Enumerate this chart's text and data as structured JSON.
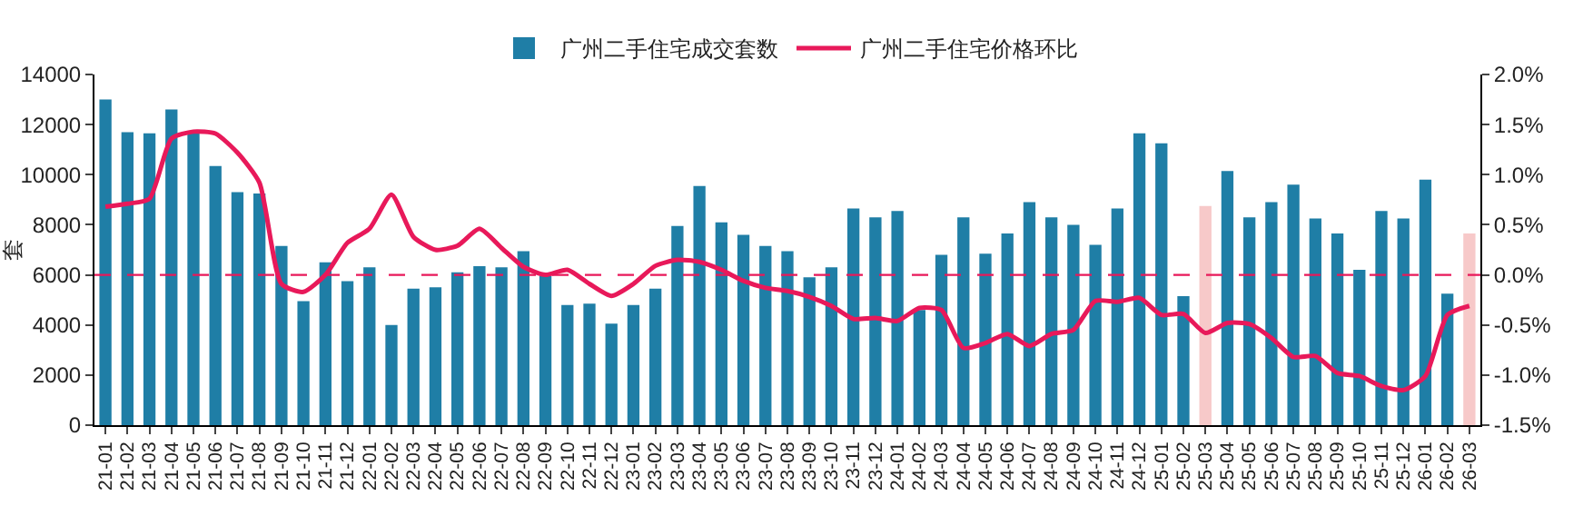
{
  "chart_data": {
    "type": "bar",
    "ylabel": "套",
    "categories": [
      "21-01",
      "21-02",
      "21-03",
      "21-04",
      "21-05",
      "21-06",
      "21-07",
      "21-08",
      "21-09",
      "21-10",
      "21-11",
      "21-12",
      "22-01",
      "22-02",
      "22-03",
      "22-04",
      "22-05",
      "22-06",
      "22-07",
      "22-08",
      "22-09",
      "22-10",
      "22-11",
      "22-12",
      "23-01",
      "23-02",
      "23-03",
      "23-04",
      "23-05",
      "23-06",
      "23-07",
      "23-08",
      "23-09",
      "23-10",
      "23-11",
      "23-12",
      "24-01",
      "24-02",
      "24-03",
      "24-04",
      "24-05",
      "24-06",
      "24-07",
      "24-08",
      "24-09",
      "24-10",
      "24-11",
      "24-12",
      "25-01",
      "25-02",
      "25-03",
      "25-04",
      "25-05",
      "25-06",
      "25-07",
      "25-08",
      "25-09",
      "25-10",
      "25-11",
      "25-12",
      "26-01",
      "26-02",
      "26-03"
    ],
    "series": [
      {
        "name": "广州二手住宅成交套数",
        "colors": [
          "#1f7ea6",
          "#1f7ea6",
          "#1f7ea6",
          "#1f7ea6",
          "#1f7ea6",
          "#1f7ea6",
          "#1f7ea6",
          "#1f7ea6",
          "#1f7ea6",
          "#1f7ea6",
          "#1f7ea6",
          "#1f7ea6",
          "#1f7ea6",
          "#1f7ea6",
          "#1f7ea6",
          "#1f7ea6",
          "#1f7ea6",
          "#1f7ea6",
          "#1f7ea6",
          "#1f7ea6",
          "#1f7ea6",
          "#1f7ea6",
          "#1f7ea6",
          "#1f7ea6",
          "#1f7ea6",
          "#1f7ea6",
          "#1f7ea6",
          "#1f7ea6",
          "#1f7ea6",
          "#1f7ea6",
          "#1f7ea6",
          "#1f7ea6",
          "#1f7ea6",
          "#1f7ea6",
          "#1f7ea6",
          "#1f7ea6",
          "#1f7ea6",
          "#1f7ea6",
          "#1f7ea6",
          "#1f7ea6",
          "#1f7ea6",
          "#1f7ea6",
          "#1f7ea6",
          "#1f7ea6",
          "#1f7ea6",
          "#1f7ea6",
          "#1f7ea6",
          "#1f7ea6",
          "#1f7ea6",
          "#1f7ea6",
          "#f7c9c9",
          "#1f7ea6",
          "#1f7ea6",
          "#1f7ea6",
          "#1f7ea6",
          "#1f7ea6",
          "#1f7ea6",
          "#1f7ea6",
          "#1f7ea6",
          "#1f7ea6",
          "#1f7ea6",
          "#1f7ea6",
          "#f7c9c9"
        ],
        "values": [
          13000,
          11700,
          11650,
          12600,
          11700,
          10350,
          9300,
          9250,
          7150,
          4950,
          6500,
          5750,
          6300,
          4000,
          5450,
          5500,
          6100,
          6350,
          6300,
          6950,
          5950,
          4800,
          4850,
          4050,
          4800,
          5450,
          7950,
          9550,
          8100,
          7600,
          7150,
          6950,
          5900,
          6300,
          8650,
          8300,
          8550,
          4600,
          6800,
          8300,
          6850,
          7650,
          8900,
          8300,
          8000,
          7200,
          8650,
          11650,
          11250,
          5150,
          8750,
          10150,
          8300,
          8900,
          9600,
          8250,
          7650,
          6200,
          8550,
          8250,
          9800,
          5250,
          7650
        ]
      },
      {
        "name": "广州二手住宅价格环比",
        "type": "line",
        "axis": "y2",
        "color": "#e8195a",
        "marker": "none",
        "line_style": "solid",
        "values": [
          0.68,
          0.71,
          0.76,
          1.36,
          1.43,
          1.41,
          1.22,
          0.92,
          -0.09,
          -0.17,
          0.0,
          0.32,
          0.46,
          0.8,
          0.38,
          0.25,
          0.29,
          0.46,
          0.27,
          0.08,
          0.0,
          0.05,
          -0.09,
          -0.21,
          -0.09,
          0.09,
          0.15,
          0.13,
          0.05,
          -0.06,
          -0.13,
          -0.16,
          -0.22,
          -0.31,
          -0.44,
          -0.43,
          -0.46,
          -0.33,
          -0.35,
          -0.73,
          -0.68,
          -0.59,
          -0.71,
          -0.59,
          -0.55,
          -0.26,
          -0.27,
          -0.23,
          -0.4,
          -0.39,
          -0.58,
          -0.48,
          -0.49,
          -0.63,
          -0.82,
          -0.81,
          -0.98,
          -1.01,
          -1.11,
          -1.15,
          -1.01,
          -0.4,
          -0.31
        ]
      }
    ],
    "ylim": [
      0,
      14000
    ],
    "yticks": [
      0,
      2000,
      4000,
      6000,
      8000,
      10000,
      12000,
      14000
    ],
    "y2lim": [
      -1.5,
      2.0
    ],
    "y2ticks": [
      {
        "value": -1.5,
        "label": "-1.5%"
      },
      {
        "value": -1.0,
        "label": "-1.0%"
      },
      {
        "value": -0.5,
        "label": "-0.5%"
      },
      {
        "value": 0,
        "label": "0.0%"
      },
      {
        "value": 0.5,
        "label": "0.5%"
      },
      {
        "value": 1.0,
        "label": "1.0%"
      },
      {
        "value": 1.5,
        "label": "1.5%"
      },
      {
        "value": 2.0,
        "label": "2.0%"
      }
    ],
    "ref_lines": [
      {
        "axis": "y2",
        "value": 0,
        "color": "#e8195a",
        "line_style": "dashed"
      }
    ],
    "grid": false,
    "legend": "top"
  }
}
